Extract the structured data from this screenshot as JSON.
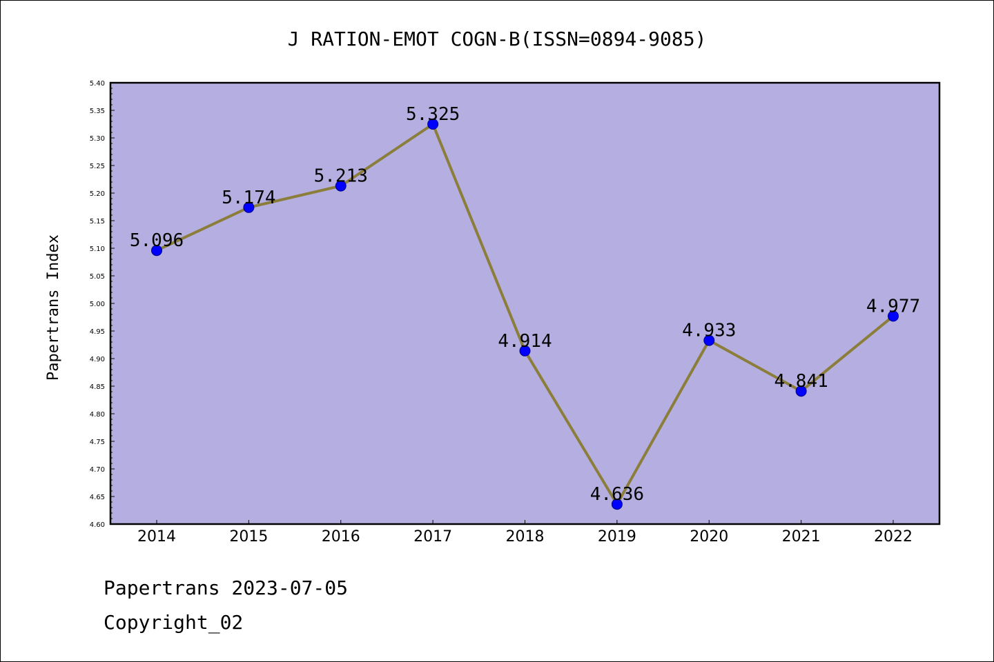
{
  "chart_data": {
    "type": "line",
    "title": "J RATION-EMOT COGN-B(ISSN=0894-9085)",
    "xlabel": "",
    "ylabel": "Papertrans Index",
    "categories": [
      "2014",
      "2015",
      "2016",
      "2017",
      "2018",
      "2019",
      "2020",
      "2021",
      "2022"
    ],
    "series": [
      {
        "values": [
          5.096,
          5.174,
          5.213,
          5.325,
          4.914,
          4.636,
          4.933,
          4.841,
          4.977
        ],
        "labels": [
          "5.096",
          "5.174",
          "5.213",
          "5.325",
          "4.914",
          "4.636",
          "4.933",
          "4.841",
          "4.977"
        ]
      }
    ],
    "ylim": [
      4.6,
      5.4
    ],
    "yticks": [
      "4.60",
      "4.65",
      "4.70",
      "4.75",
      "4.80",
      "4.85",
      "4.90",
      "4.95",
      "5.00",
      "5.05",
      "5.10",
      "5.15",
      "5.20",
      "5.25",
      "5.30",
      "5.35",
      "5.40"
    ],
    "grid": false,
    "legend": "none",
    "colors": {
      "plot_background": "#b5aee0",
      "line": "#8b7d3a",
      "marker": "#0000ff"
    }
  },
  "footer": {
    "line1": "Papertrans 2023-07-05",
    "line2": "Copyright_02"
  }
}
